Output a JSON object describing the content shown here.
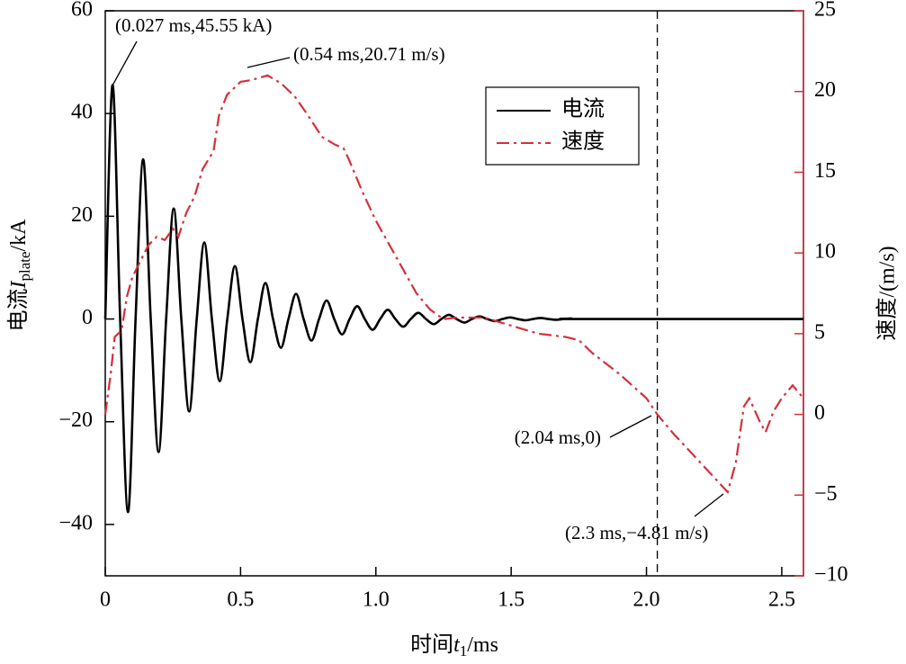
{
  "chart_data": {
    "type": "line",
    "xlabel": [
      "时间",
      "t",
      "1",
      "/ms"
    ],
    "ylabel": [
      "电流",
      "I",
      "plate",
      "/kA"
    ],
    "y2label": "速度/(m/s)",
    "xlim": [
      0,
      2.58
    ],
    "xticks": [
      0,
      0.5,
      {
        "value": 1,
        "label": "1.0"
      },
      1.5,
      {
        "value": 2,
        "label": "2.0"
      },
      2.5
    ],
    "ylim": [
      -50,
      60
    ],
    "yticks": [
      {
        "value": -40,
        "label": "−40"
      },
      {
        "value": -20,
        "label": "−20"
      },
      0,
      20,
      40,
      60
    ],
    "y2lim": [
      -10,
      25
    ],
    "y2ticks": [
      {
        "value": -10,
        "label": "−10"
      },
      {
        "value": -5,
        "label": "−5"
      },
      0,
      5,
      10,
      15,
      20,
      25
    ],
    "y2color": "#d62f3a",
    "legend": "upper right",
    "vlines": [
      2.04
    ],
    "series": [
      {
        "name": "电流",
        "color": "#000000",
        "dash": "solid",
        "x": [
          0,
          0.027,
          0.055,
          0.084,
          0.112,
          0.14,
          0.168,
          0.197,
          0.225,
          0.253,
          0.281,
          0.31,
          0.338,
          0.366,
          0.394,
          0.423,
          0.451,
          0.479,
          0.507,
          0.536,
          0.564,
          0.592,
          0.62,
          0.649,
          0.677,
          0.705,
          0.733,
          0.762,
          0.79,
          0.818,
          0.846,
          0.875,
          0.903,
          0.931,
          0.959,
          0.988,
          1.016,
          1.044,
          1.072,
          1.101,
          1.129,
          1.157,
          1.185,
          1.214,
          1.242,
          1.27,
          1.298,
          1.327,
          1.355,
          1.383,
          1.411,
          1.44,
          1.468,
          1.496,
          1.524,
          1.553,
          1.581,
          1.609,
          1.637,
          1.666,
          1.694,
          1.722,
          1.75,
          2.58
        ],
        "values": [
          0,
          45.55,
          0,
          -37.6,
          0,
          31.1,
          0,
          -25.9,
          0,
          21.5,
          0,
          -18,
          0,
          14.9,
          0,
          -12.1,
          0,
          10.3,
          0,
          -8.4,
          0,
          7,
          0,
          -5.6,
          0,
          4.9,
          0,
          -4.2,
          0,
          3.6,
          0,
          -3.0,
          0,
          2.5,
          0,
          -2.1,
          0,
          1.8,
          0,
          -1.5,
          0,
          1.2,
          0,
          -1.0,
          0,
          0.8,
          0,
          -0.7,
          0,
          0.5,
          0,
          -0.4,
          0,
          0.3,
          0,
          -0.25,
          0,
          0.2,
          0,
          -0.15,
          0,
          0.1,
          0,
          0
        ]
      },
      {
        "name": "速度",
        "color": "#d62f3a",
        "dash": "dashdot",
        "axis": "y2",
        "x": [
          0,
          0.02,
          0.035,
          0.06,
          0.08,
          0.1,
          0.13,
          0.16,
          0.19,
          0.22,
          0.25,
          0.27,
          0.3,
          0.33,
          0.36,
          0.4,
          0.42,
          0.45,
          0.5,
          0.54,
          0.6,
          0.65,
          0.7,
          0.75,
          0.8,
          0.85,
          0.88,
          0.9,
          0.95,
          1.0,
          1.05,
          1.1,
          1.15,
          1.2,
          1.25,
          1.3,
          1.4,
          1.5,
          1.6,
          1.7,
          1.75,
          1.8,
          1.9,
          2.0,
          2.04,
          2.1,
          2.2,
          2.3,
          2.33,
          2.36,
          2.38,
          2.42,
          2.44,
          2.47,
          2.5,
          2.54,
          2.58
        ],
        "values": [
          0,
          2.5,
          4.8,
          5.2,
          7.3,
          8.5,
          9.5,
          10.5,
          11.0,
          10.8,
          11.5,
          11.0,
          12.5,
          13.5,
          15.2,
          16.3,
          18.5,
          19.8,
          20.6,
          20.71,
          21.0,
          20.5,
          19.7,
          18.5,
          17.2,
          16.7,
          16.5,
          15.8,
          13.8,
          12.0,
          10.5,
          9.0,
          7.5,
          6.5,
          5.9,
          6.0,
          6.0,
          5.5,
          5.0,
          4.8,
          4.6,
          3.8,
          2.5,
          1.0,
          0,
          -1.2,
          -3.0,
          -4.81,
          -3.0,
          0.5,
          1.0,
          -0.5,
          -1.1,
          0.2,
          1.0,
          1.8,
          1.0
        ]
      }
    ],
    "annotations": [
      "(0.027 ms,45.55 kA)",
      "(0.54 ms,20.71 m/s)",
      "(2.04 ms,0)",
      "(2.3 ms,−4.81 m/s)"
    ]
  }
}
